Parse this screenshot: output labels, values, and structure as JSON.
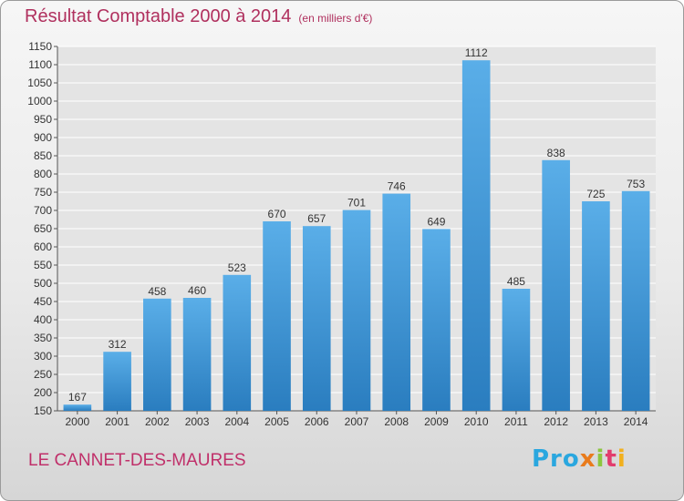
{
  "title": "Résultat Comptable 2000 à 2014",
  "subtitle": "(en milliers d'€)",
  "commune": "LE CANNET-DES-MAURES",
  "logo": [
    "Pro",
    "x",
    "i",
    "t",
    "i"
  ],
  "colors": {
    "bar_light": "#5aaee8",
    "bar_dark": "#2a7dbf",
    "title": "#b0305e",
    "grid": "#ffffff"
  },
  "chart_data": {
    "type": "bar",
    "title": "Résultat Comptable 2000 à 2014",
    "subtitle": "(en milliers d'€)",
    "categories": [
      "2000",
      "2001",
      "2002",
      "2003",
      "2004",
      "2005",
      "2006",
      "2007",
      "2008",
      "2009",
      "2010",
      "2011",
      "2012",
      "2013",
      "2014"
    ],
    "values": [
      167,
      312,
      458,
      460,
      523,
      670,
      657,
      701,
      746,
      649,
      1112,
      485,
      838,
      725,
      753
    ],
    "ylim": [
      150,
      1150
    ],
    "yticks": [
      150,
      200,
      250,
      300,
      350,
      400,
      450,
      500,
      550,
      600,
      650,
      700,
      750,
      800,
      850,
      900,
      950,
      1000,
      1050,
      1100,
      1150
    ],
    "grid": true,
    "legend": "none"
  }
}
